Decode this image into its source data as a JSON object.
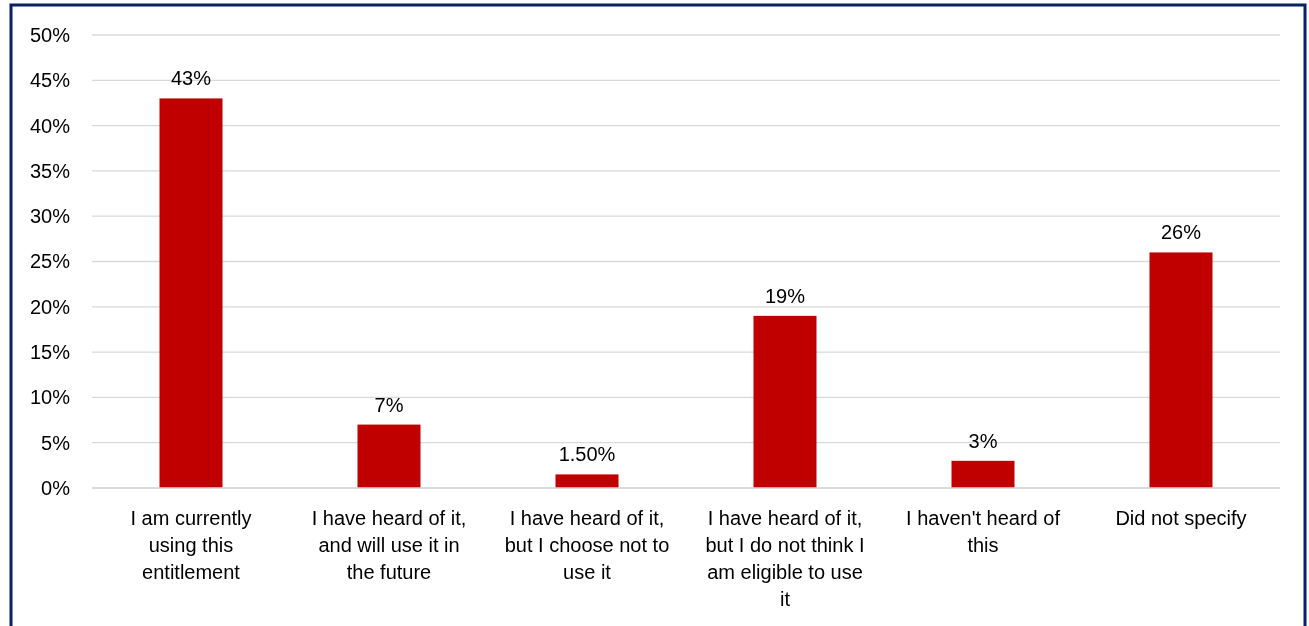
{
  "chart_data": {
    "type": "bar",
    "categories": [
      "I am currently using this entitlement",
      "I have heard of it, and will use it in the future",
      "I have heard of it, but I choose not to use it",
      "I have heard of it, but I do not think I am eligible to use it",
      "I haven't heard of this",
      "Did not specify"
    ],
    "values": [
      43,
      7,
      1.5,
      19,
      3,
      26
    ],
    "value_labels": [
      "43%",
      "7%",
      "1.50%",
      "19%",
      "3%",
      "26%"
    ],
    "color": "#c00000",
    "ylim": [
      0,
      50
    ],
    "yticks": [
      {
        "value": 0,
        "label": "0%"
      },
      {
        "value": 5,
        "label": "5%"
      },
      {
        "value": 10,
        "label": "10%"
      },
      {
        "value": 15,
        "label": "15%"
      },
      {
        "value": 20,
        "label": "20%"
      },
      {
        "value": 25,
        "label": "25%"
      },
      {
        "value": 30,
        "label": "30%"
      },
      {
        "value": 35,
        "label": "35%"
      },
      {
        "value": 40,
        "label": "40%"
      },
      {
        "value": 45,
        "label": "45%"
      },
      {
        "value": 50,
        "label": "50%"
      }
    ],
    "grid": "y"
  }
}
